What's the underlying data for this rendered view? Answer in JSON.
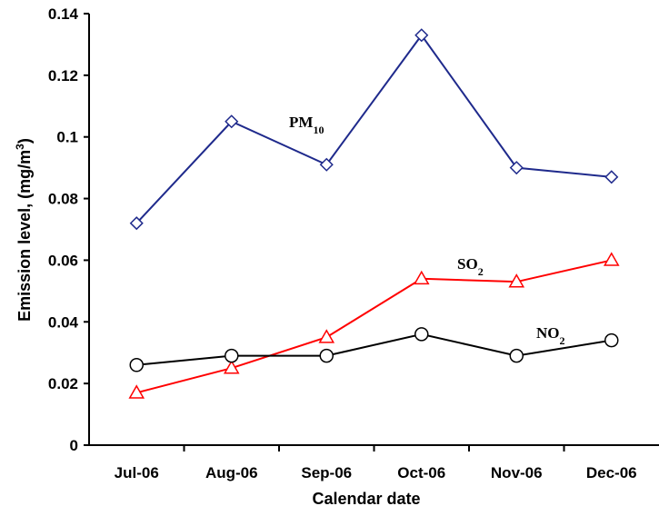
{
  "chart_data": {
    "type": "line",
    "categories": [
      "Jul-06",
      "Aug-06",
      "Sep-06",
      "Oct-06",
      "Nov-06",
      "Dec-06"
    ],
    "series": [
      {
        "name": "PM10",
        "label_main": "PM",
        "label_sub": "10",
        "color": "#1f2a8c",
        "marker": "diamond",
        "values": [
          0.072,
          0.105,
          0.091,
          0.133,
          0.09,
          0.087
        ]
      },
      {
        "name": "SO2",
        "label_main": "SO",
        "label_sub": "2",
        "color": "#ff0000",
        "marker": "triangle",
        "values": [
          0.017,
          0.025,
          0.035,
          0.054,
          0.053,
          0.06
        ]
      },
      {
        "name": "NO2",
        "label_main": "NO",
        "label_sub": "2",
        "color": "#000000",
        "marker": "circle",
        "values": [
          0.026,
          0.029,
          0.029,
          0.036,
          0.029,
          0.034
        ]
      }
    ],
    "y_ticks": [
      "0",
      "0.02",
      "0.04",
      "0.06",
      "0.08",
      "0.1",
      "0.12",
      "0.14"
    ],
    "y_tick_values": [
      0,
      0.02,
      0.04,
      0.06,
      0.08,
      0.1,
      0.12,
      0.14
    ],
    "ylim": [
      0,
      0.14
    ],
    "xlabel": "Calendar date",
    "ylabel_main": "Emission level, (mg/m",
    "ylabel_sup": "3",
    "ylabel_close": ")",
    "grid": false,
    "legend": "inline labels"
  }
}
